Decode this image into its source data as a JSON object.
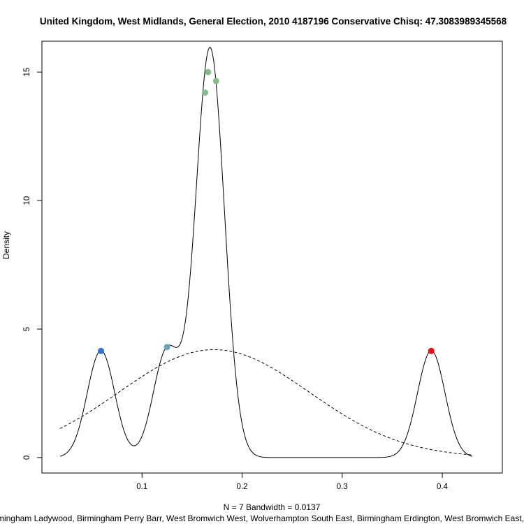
{
  "chart_data": {
    "type": "line",
    "title": "United Kingdom, West Midlands, General Election, 2010 4187196 Conservative Chisq: 47.3083989345568",
    "xlabel": "N = 7   Bandwidth = 0.0137",
    "ylabel": "Density",
    "constituencies_label": "Birmingham Ladywood, Birmingham Perry Barr, West Bromwich West, Wolverhampton South East, Birmingham Erdington, West Bromwich East, Aldridge",
    "xlim": [
      0.0,
      0.46
    ],
    "ylim": [
      -0.6,
      16.2
    ],
    "x_ticks": [
      0.1,
      0.2,
      0.3,
      0.4
    ],
    "x_tick_labels": [
      "0.1",
      "0.2",
      "0.3",
      "0.4"
    ],
    "y_ticks": [
      0,
      5,
      10,
      15
    ],
    "y_tick_labels": [
      "0",
      "5",
      "10",
      "15"
    ],
    "bandwidth": 0.0137,
    "n": 7,
    "x_range": [
      0.018,
      0.43
    ],
    "normal_reference": {
      "mean": 0.172,
      "sd": 0.095,
      "style": "dashed"
    },
    "points": [
      {
        "x": 0.059,
        "y": 4.15,
        "color": "#3a6fd6"
      },
      {
        "x": 0.125,
        "y": 4.3,
        "color": "#6aa3b2"
      },
      {
        "x": 0.163,
        "y": 14.2,
        "color": "#86bb8a"
      },
      {
        "x": 0.166,
        "y": 15.0,
        "color": "#86bb8a"
      },
      {
        "x": 0.174,
        "y": 14.65,
        "color": "#86bb8a"
      },
      {
        "x": 0.389,
        "y": 4.15,
        "color": "#ee1111"
      }
    ],
    "grid": false,
    "colors": {
      "density_line": "#000000",
      "normal_line": "#000000"
    }
  }
}
